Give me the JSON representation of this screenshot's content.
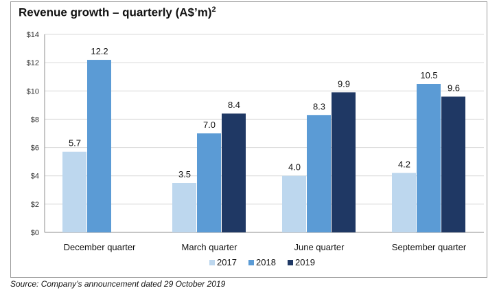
{
  "title": "Revenue growth – quarterly (A$’m)",
  "title_superscript": "2",
  "source": "Source: Company’s announcement dated 29 October 2019",
  "chart_data": {
    "type": "bar",
    "categories": [
      "December quarter",
      "March quarter",
      "June quarter",
      "September quarter"
    ],
    "series": [
      {
        "name": "2017",
        "color": "#bdd7ee",
        "values": [
          5.7,
          3.5,
          4.0,
          4.2
        ]
      },
      {
        "name": "2018",
        "color": "#5b9bd5",
        "values": [
          12.2,
          7.0,
          8.3,
          10.5
        ]
      },
      {
        "name": "2019",
        "color": "#1f3864",
        "values": [
          null,
          8.4,
          9.9,
          9.6
        ]
      }
    ],
    "value_labels": [
      [
        "5.7",
        "3.5",
        "4.0",
        "4.2"
      ],
      [
        "12.2",
        "7.0",
        "8.3",
        "10.5"
      ],
      [
        "",
        "8.4",
        "9.9",
        "9.6"
      ]
    ],
    "y_ticks": [
      0,
      2,
      4,
      6,
      8,
      10,
      12,
      14
    ],
    "y_tick_labels": [
      "$0",
      "$2",
      "$4",
      "$6",
      "$8",
      "$10",
      "$12",
      "$14"
    ],
    "ylim": [
      0,
      14
    ],
    "grid": true,
    "legend_position": "bottom-center"
  }
}
